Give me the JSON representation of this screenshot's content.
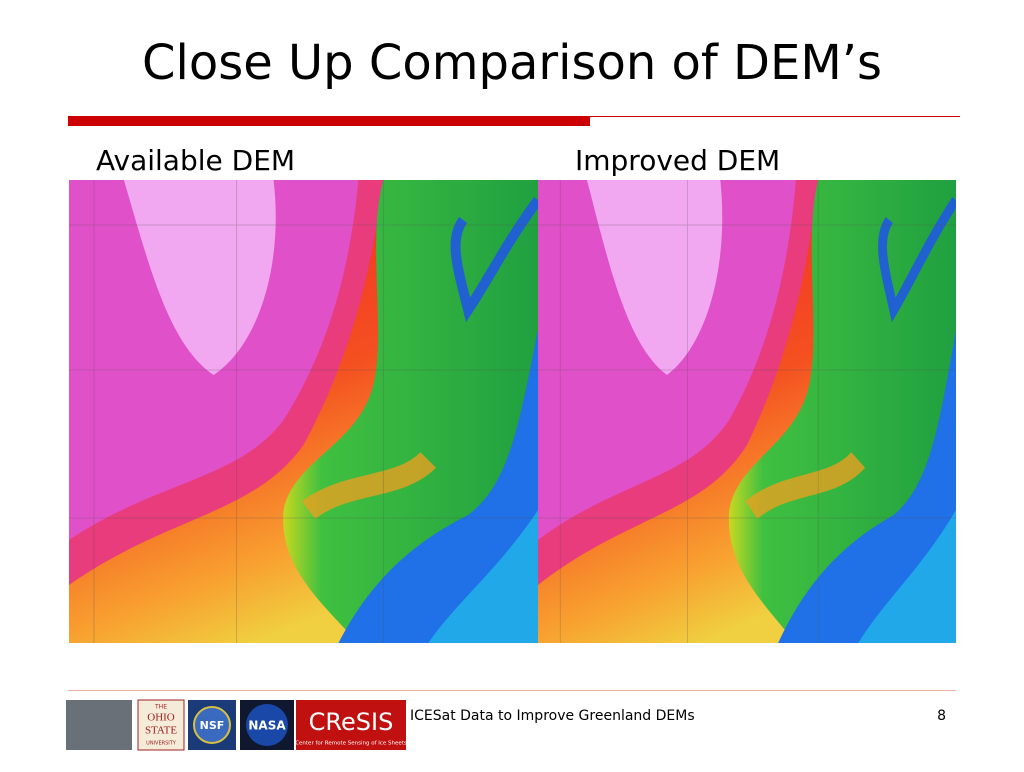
{
  "header": {
    "title": "Close Up Comparison of DEM’s"
  },
  "panels": [
    {
      "label": "Available DEM"
    },
    {
      "label": "Improved DEM"
    }
  ],
  "footer": {
    "text": "ICESat Data to Improve Greenland DEMs",
    "page_number": "8",
    "logos": {
      "osu": [
        "THE",
        "OHIO",
        "STATE",
        "UNIVERSITY"
      ],
      "nsf": "NSF",
      "nasa": "NASA",
      "cresis": "CReSIS",
      "cresis_subtitle": "Center for Remote Sensing of Ice Sheets"
    }
  }
}
